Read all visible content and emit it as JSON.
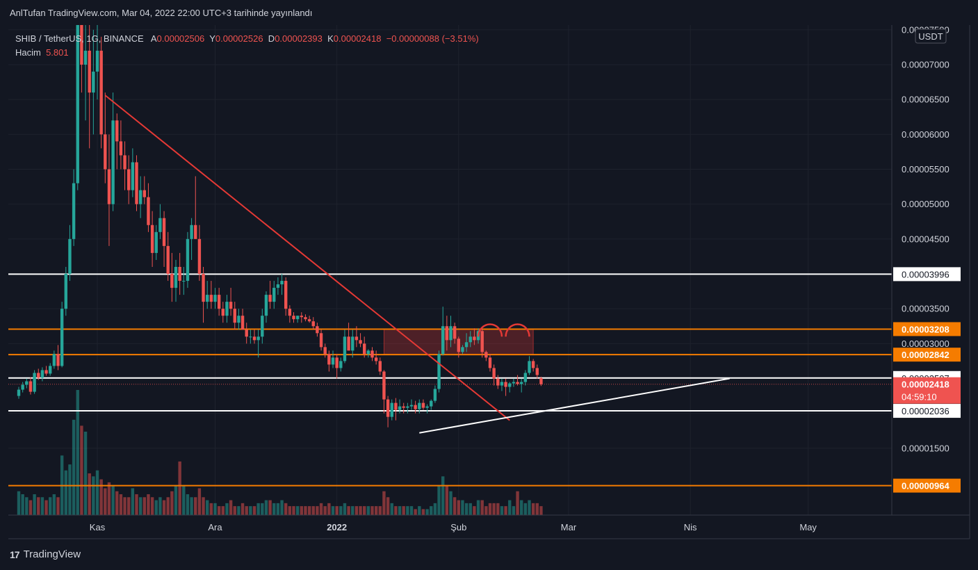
{
  "header": {
    "publish_text": "AnlTufan TradingView.com, Mar 04, 2022 22:00 UTC+3 tarihinde yayınlandı"
  },
  "legend": {
    "symbol": "SHIB / TetherUS, 1G, BINANCE",
    "open_label": "A",
    "open": "0.00002506",
    "high_label": "Y",
    "high": "0.00002526",
    "low_label": "D",
    "low": "0.00002393",
    "close_label": "K",
    "close": "0.00002418",
    "change": "−0.00000088 (−3.51%)",
    "volume_label": "Hacim",
    "volume": "5.801"
  },
  "footer": {
    "logo": "17",
    "brand": "TradingView"
  },
  "colors": {
    "background": "#131722",
    "up": "#26a69a",
    "down": "#ef5350",
    "grid": "#1e222d",
    "orange": "#f57c00",
    "trend": "#e53935",
    "white": "#ffffff"
  },
  "chart_data": {
    "type": "candlestick",
    "currency": "USDT",
    "y_ticks": [
      1.5e-05,
      2e-05,
      2.5e-05,
      3e-05,
      3.5e-05,
      4e-05,
      4.5e-05,
      5e-05,
      5.5e-05,
      6e-05,
      6.5e-05,
      7e-05,
      7.5e-05
    ],
    "y_tick_labels": [
      "0.00001500",
      "0.00002000",
      "0.00002500",
      "0.00003000",
      "0.00003500",
      "0.00004000",
      "0.00004500",
      "0.00005000",
      "0.00005500",
      "0.00006000",
      "0.00006500",
      "0.00007000",
      "0.00007500"
    ],
    "x_ticks": [
      "Kas",
      "Ara",
      "2022",
      "Şub",
      "Mar",
      "Nis",
      "May"
    ],
    "x_tick_dates": [
      "2021-11-01",
      "2021-12-01",
      "2022-01-01",
      "2022-02-01",
      "2022-03-01",
      "2022-04-01",
      "2022-05-01"
    ],
    "candles_start_date": "2021-10-12",
    "candles": [
      [
        2.25e-05,
        2.38e-05,
        2.21e-05,
        2.34e-05
      ],
      [
        2.34e-05,
        2.45e-05,
        2.3e-05,
        2.41e-05
      ],
      [
        2.41e-05,
        2.5e-05,
        2.36e-05,
        2.46e-05
      ],
      [
        2.46e-05,
        2.52e-05,
        2.27e-05,
        2.31e-05
      ],
      [
        2.31e-05,
        2.62e-05,
        2.28e-05,
        2.58e-05
      ],
      [
        2.58e-05,
        2.64e-05,
        2.48e-05,
        2.51e-05
      ],
      [
        2.51e-05,
        2.66e-05,
        2.46e-05,
        2.62e-05
      ],
      [
        2.62e-05,
        2.68e-05,
        2.54e-05,
        2.57e-05
      ],
      [
        2.57e-05,
        2.72e-05,
        2.54e-05,
        2.68e-05
      ],
      [
        2.68e-05,
        2.9e-05,
        2.64e-05,
        2.85e-05
      ],
      [
        2.85e-05,
        2.98e-05,
        2.62e-05,
        2.68e-05
      ],
      [
        2.68e-05,
        3.6e-05,
        2.66e-05,
        3.5e-05
      ],
      [
        3.5e-05,
        4.1e-05,
        3.4e-05,
        4e-05
      ],
      [
        4e-05,
        4.7e-05,
        3.9e-05,
        4.5e-05
      ],
      [
        4.5e-05,
        5.5e-05,
        4.4e-05,
        5.3e-05
      ],
      [
        5.3e-05,
        8.7e-05,
        5.2e-05,
        8e-05
      ],
      [
        8e-05,
        8.8e-05,
        6.6e-05,
        7e-05
      ],
      [
        7e-05,
        8.5e-05,
        6.2e-05,
        7.2e-05
      ],
      [
        7.2e-05,
        7.9e-05,
        5.8e-05,
        6.6e-05
      ],
      [
        6.6e-05,
        7.5e-05,
        6e-05,
        6.9e-05
      ],
      [
        6.9e-05,
        7.8e-05,
        6.5e-05,
        7.2e-05
      ],
      [
        7.2e-05,
        7.4e-05,
        5.8e-05,
        6e-05
      ],
      [
        6e-05,
        6.6e-05,
        5.3e-05,
        5.5e-05
      ],
      [
        5.5e-05,
        6e-05,
        4.4e-05,
        5e-05
      ],
      [
        5e-05,
        6.6e-05,
        4.9e-05,
        6.2e-05
      ],
      [
        6.2e-05,
        6.3e-05,
        5.5e-05,
        5.9e-05
      ],
      [
        5.9e-05,
        6.2e-05,
        5.5e-05,
        5.7e-05
      ],
      [
        5.7e-05,
        5.9e-05,
        5.2e-05,
        5.5e-05
      ],
      [
        5.5e-05,
        5.7e-05,
        5e-05,
        5.2e-05
      ],
      [
        5.2e-05,
        5.8e-05,
        5.1e-05,
        5.6e-05
      ],
      [
        5.6e-05,
        5.7e-05,
        4.9e-05,
        5e-05
      ],
      [
        5e-05,
        5.4e-05,
        4.8e-05,
        5.2e-05
      ],
      [
        5.2e-05,
        5.4e-05,
        5e-05,
        5.1e-05
      ],
      [
        5.1e-05,
        5.3e-05,
        4.6e-05,
        4.7e-05
      ],
      [
        4.7e-05,
        4.9e-05,
        4.1e-05,
        4.3e-05
      ],
      [
        4.3e-05,
        4.7e-05,
        4.2e-05,
        4.6e-05
      ],
      [
        4.6e-05,
        5e-05,
        4.5e-05,
        4.8e-05
      ],
      [
        4.8e-05,
        4.9e-05,
        4.1e-05,
        4.4e-05
      ],
      [
        4.4e-05,
        4.6e-05,
        3.9e-05,
        4e-05
      ],
      [
        4e-05,
        4.3e-05,
        3.6e-05,
        3.8e-05
      ],
      [
        3.8e-05,
        4.2e-05,
        3.6e-05,
        4.1e-05
      ],
      [
        4.1e-05,
        4.3e-05,
        3.7e-05,
        3.9e-05
      ],
      [
        3.9e-05,
        4.1e-05,
        3.7e-05,
        3.9e-05
      ],
      [
        3.9e-05,
        4.6e-05,
        3.8e-05,
        4.5e-05
      ],
      [
        4.5e-05,
        4.8e-05,
        4.2e-05,
        4.7e-05
      ],
      [
        4.7e-05,
        5.4e-05,
        4.5e-05,
        4.5e-05
      ],
      [
        4.5e-05,
        4.7e-05,
        3.9e-05,
        4e-05
      ],
      [
        4e-05,
        4.1e-05,
        3.3e-05,
        3.6e-05
      ],
      [
        3.6e-05,
        3.9e-05,
        3.5e-05,
        3.7e-05
      ],
      [
        3.7e-05,
        3.9e-05,
        3.5e-05,
        3.6e-05
      ],
      [
        3.6e-05,
        3.8e-05,
        3.5e-05,
        3.7e-05
      ],
      [
        3.7e-05,
        3.8e-05,
        3.4e-05,
        3.5e-05
      ],
      [
        3.5e-05,
        3.6e-05,
        3.3e-05,
        3.4e-05
      ],
      [
        3.4e-05,
        3.7e-05,
        3.3e-05,
        3.6e-05
      ],
      [
        3.6e-05,
        3.8e-05,
        3.4e-05,
        3.5e-05
      ],
      [
        3.5e-05,
        3.6e-05,
        3.2e-05,
        3.3e-05
      ],
      [
        3.3e-05,
        3.5e-05,
        3.2e-05,
        3.4e-05
      ],
      [
        3.4e-05,
        3.5e-05,
        3.2e-05,
        3.2e-05
      ],
      [
        3.2e-05,
        3.3e-05,
        3e-05,
        3.1e-05
      ],
      [
        3.1e-05,
        3.2e-05,
        3e-05,
        3.1e-05
      ],
      [
        3.1e-05,
        3.2e-05,
        3e-05,
        3.05e-05
      ],
      [
        3.05e-05,
        3.2e-05,
        2.8e-05,
        3.1e-05
      ],
      [
        3.1e-05,
        3.5e-05,
        3e-05,
        3.4e-05
      ],
      [
        3.4e-05,
        3.75e-05,
        3.3e-05,
        3.7e-05
      ],
      [
        3.7e-05,
        3.9e-05,
        3.5e-05,
        3.6e-05
      ],
      [
        3.6e-05,
        3.9e-05,
        3.5e-05,
        3.8e-05
      ],
      [
        3.8e-05,
        3.95e-05,
        3.7e-05,
        3.85e-05
      ],
      [
        3.85e-05,
        4e-05,
        3.7e-05,
        3.9e-05
      ],
      [
        3.9e-05,
        3.95e-05,
        3.4e-05,
        3.5e-05
      ],
      [
        3.5e-05,
        3.55e-05,
        3.3e-05,
        3.4e-05
      ],
      [
        3.4e-05,
        3.45e-05,
        3.3e-05,
        3.35e-05
      ],
      [
        3.35e-05,
        3.4e-05,
        3.3e-05,
        3.4e-05
      ],
      [
        3.4e-05,
        3.45e-05,
        3.3e-05,
        3.38e-05
      ],
      [
        3.38e-05,
        3.42e-05,
        3.32e-05,
        3.35e-05
      ],
      [
        3.35e-05,
        3.4e-05,
        3.3e-05,
        3.32e-05
      ],
      [
        3.32e-05,
        3.38e-05,
        3.2e-05,
        3.25e-05
      ],
      [
        3.25e-05,
        3.3e-05,
        3.1e-05,
        3.15e-05
      ],
      [
        3.15e-05,
        3.2e-05,
        2.9e-05,
        2.95e-05
      ],
      [
        2.95e-05,
        3e-05,
        2.8e-05,
        2.85e-05
      ],
      [
        2.85e-05,
        2.9e-05,
        2.6e-05,
        2.7e-05
      ],
      [
        2.7e-05,
        2.9e-05,
        2.65e-05,
        2.8e-05
      ],
      [
        2.8e-05,
        2.85e-05,
        2.5e-05,
        2.65e-05
      ],
      [
        2.65e-05,
        2.8e-05,
        2.6e-05,
        2.75e-05
      ],
      [
        2.75e-05,
        3.2e-05,
        2.72e-05,
        3.1e-05
      ],
      [
        3.1e-05,
        3.3e-05,
        2.95e-05,
        2.9e-05
      ],
      [
        2.9e-05,
        3.2e-05,
        2.8e-05,
        3.1e-05
      ],
      [
        3.1e-05,
        3.25e-05,
        2.95e-05,
        3.05e-05
      ],
      [
        3.05e-05,
        3.15e-05,
        2.95e-05,
        3e-05
      ],
      [
        3e-05,
        3.1e-05,
        2.8e-05,
        2.85e-05
      ],
      [
        2.85e-05,
        2.92e-05,
        2.8e-05,
        2.9e-05
      ],
      [
        2.9e-05,
        2.95e-05,
        2.75e-05,
        2.8e-05
      ],
      [
        2.8e-05,
        2.9e-05,
        2.7e-05,
        2.75e-05
      ],
      [
        2.75e-05,
        2.8e-05,
        2.55e-05,
        2.6e-05
      ],
      [
        2.6e-05,
        2.62e-05,
        2e-05,
        2.2e-05
      ],
      [
        2.2e-05,
        2.25e-05,
        1.8e-05,
        1.95e-05
      ],
      [
        1.95e-05,
        2.2e-05,
        1.9e-05,
        2.15e-05
      ],
      [
        2.15e-05,
        2.22e-05,
        1.9e-05,
        2.05e-05
      ],
      [
        2.05e-05,
        2.2e-05,
        2e-05,
        2.1e-05
      ],
      [
        2.1e-05,
        2.15e-05,
        2e-05,
        2.08e-05
      ],
      [
        2.08e-05,
        2.15e-05,
        2e-05,
        2.1e-05
      ],
      [
        2.1e-05,
        2.2e-05,
        2.05e-05,
        2.12e-05
      ],
      [
        2.12e-05,
        2.18e-05,
        2e-05,
        2.06e-05
      ],
      [
        2.06e-05,
        2.2e-05,
        2e-05,
        2.15e-05
      ],
      [
        2.15e-05,
        2.2e-05,
        2.05e-05,
        2.08e-05
      ],
      [
        2.08e-05,
        2.13e-05,
        2e-05,
        2.1e-05
      ],
      [
        2.1e-05,
        2.2e-05,
        2.05e-05,
        2.18e-05
      ],
      [
        2.18e-05,
        2.4e-05,
        2.15e-05,
        2.35e-05
      ],
      [
        2.35e-05,
        2.9e-05,
        2.3e-05,
        2.85e-05
      ],
      [
        2.85e-05,
        3.53e-05,
        2.83e-05,
        3.25e-05
      ],
      [
        3.25e-05,
        3.4e-05,
        2.9e-05,
        3.05e-05
      ],
      [
        3.05e-05,
        3.4e-05,
        2.95e-05,
        3.25e-05
      ],
      [
        3.25e-05,
        3.3e-05,
        3e-05,
        3.07e-05
      ],
      [
        3.07e-05,
        3.1e-05,
        2.8e-05,
        2.88e-05
      ],
      [
        2.88e-05,
        2.98e-05,
        2.85e-05,
        2.95e-05
      ],
      [
        2.95e-05,
        3.15e-05,
        2.88e-05,
        3.02e-05
      ],
      [
        3.02e-05,
        3.18e-05,
        2.95e-05,
        3.1e-05
      ],
      [
        3.1e-05,
        3.22e-05,
        2.98e-05,
        3.05e-05
      ],
      [
        3.05e-05,
        3.22e-05,
        3e-05,
        3.18e-05
      ],
      [
        3.18e-05,
        3.22e-05,
        2.8e-05,
        2.88e-05
      ],
      [
        2.88e-05,
        2.9e-05,
        2.75e-05,
        2.8e-05
      ],
      [
        2.8e-05,
        2.85e-05,
        2.6e-05,
        2.65e-05
      ],
      [
        2.65e-05,
        2.7e-05,
        2.4e-05,
        2.5e-05
      ],
      [
        2.5e-05,
        2.55e-05,
        2.35e-05,
        2.4e-05
      ],
      [
        2.4e-05,
        2.5e-05,
        2.32e-05,
        2.45e-05
      ],
      [
        2.45e-05,
        2.5e-05,
        2.25e-05,
        2.38e-05
      ],
      [
        2.38e-05,
        2.45e-05,
        2.3e-05,
        2.43e-05
      ],
      [
        2.43e-05,
        2.5e-05,
        2.38e-05,
        2.45e-05
      ],
      [
        2.45e-05,
        2.55e-05,
        2.4e-05,
        2.42e-05
      ],
      [
        2.42e-05,
        2.5e-05,
        2.3e-05,
        2.45e-05
      ],
      [
        2.45e-05,
        2.62e-05,
        2.4e-05,
        2.58e-05
      ],
      [
        2.58e-05,
        2.82e-05,
        2.55e-05,
        2.75e-05
      ],
      [
        2.75e-05,
        2.78e-05,
        2.6e-05,
        2.65e-05
      ],
      [
        2.65e-05,
        2.7e-05,
        2.5e-05,
        2.55e-05
      ],
      [
        2.506e-05,
        2.526e-05,
        2.393e-05,
        2.418e-05
      ]
    ],
    "volumes": [
      0.8,
      0.7,
      0.6,
      0.5,
      0.7,
      0.6,
      0.6,
      0.5,
      0.6,
      0.7,
      0.6,
      2.0,
      1.5,
      1.7,
      3.2,
      4.2,
      3.0,
      2.8,
      1.4,
      1.3,
      1.5,
      1.2,
      0.9,
      1.1,
      1.0,
      0.8,
      0.7,
      0.6,
      0.6,
      0.9,
      0.7,
      0.6,
      0.6,
      0.7,
      0.6,
      0.5,
      0.6,
      0.5,
      0.6,
      0.8,
      1.0,
      1.8,
      1.0,
      0.7,
      0.6,
      0.6,
      0.9,
      0.6,
      0.5,
      0.4,
      0.4,
      0.3,
      0.3,
      0.4,
      0.5,
      0.3,
      0.3,
      0.4,
      0.3,
      0.3,
      0.3,
      0.4,
      0.4,
      0.5,
      0.5,
      0.4,
      0.4,
      0.5,
      0.4,
      0.3,
      0.3,
      0.3,
      0.3,
      0.3,
      0.3,
      0.3,
      0.3,
      0.4,
      0.3,
      0.4,
      0.3,
      0.3,
      0.3,
      0.4,
      0.3,
      0.3,
      0.3,
      0.3,
      0.3,
      0.3,
      0.3,
      0.3,
      0.3,
      0.8,
      0.6,
      0.4,
      0.3,
      0.3,
      0.3,
      0.3,
      0.3,
      0.2,
      0.3,
      0.2,
      0.2,
      0.3,
      0.4,
      1.0,
      1.3,
      1.0,
      0.8,
      0.6,
      0.5,
      0.5,
      0.4,
      0.4,
      0.3,
      0.5,
      0.5,
      0.3,
      0.4,
      0.4,
      0.4,
      0.3,
      0.3,
      0.5,
      0.3,
      0.8,
      0.5,
      0.4,
      0.5,
      0.4,
      0.4,
      0.3
    ],
    "volume_scale": [
      0,
      4.2
    ],
    "price_badges": [
      {
        "label": "0.00003996",
        "value": 3.996e-05,
        "style": "white"
      },
      {
        "label": "0.00003208",
        "value": 3.208e-05,
        "style": "orange"
      },
      {
        "label": "0.00002842",
        "value": 2.842e-05,
        "style": "orange"
      },
      {
        "label": "0.00002507",
        "value": 2.507e-05,
        "style": "white"
      },
      {
        "label": "0.00002036",
        "value": 2.036e-05,
        "style": "white"
      },
      {
        "label": "0.00000964",
        "value": 9.64e-06,
        "style": "orange"
      }
    ],
    "last_price": {
      "label": "0.00002418",
      "value": 2.418e-05,
      "countdown": "04:59:10"
    },
    "horizontal_lines": [
      {
        "value": 3.996e-05,
        "color": "#ffffff"
      },
      {
        "value": 3.208e-05,
        "color": "#f57c00"
      },
      {
        "value": 2.842e-05,
        "color": "#f57c00"
      },
      {
        "value": 2.507e-05,
        "color": "#ffffff"
      },
      {
        "value": 2.036e-05,
        "color": "#ffffff"
      },
      {
        "value": 9.64e-06,
        "color": "#f57c00"
      }
    ],
    "trendlines": [
      {
        "from": [
          "2021-11-03",
          6.56e-05
        ],
        "to": [
          "2022-02-14",
          1.9e-05
        ],
        "color": "#e53935"
      },
      {
        "from": [
          "2022-01-22",
          1.72e-05
        ],
        "to": [
          "2022-04-11",
          2.5e-05
        ],
        "color": "#ffffff"
      }
    ],
    "zone": {
      "from": "2022-01-13",
      "to": "2022-02-20",
      "top": 3.208e-05,
      "bottom": 2.842e-05
    },
    "arcs": [
      {
        "from": "2022-02-06",
        "to": "2022-02-12",
        "value": 3.22e-05
      },
      {
        "from": "2022-02-13",
        "to": "2022-02-19",
        "value": 3.22e-05
      }
    ]
  }
}
